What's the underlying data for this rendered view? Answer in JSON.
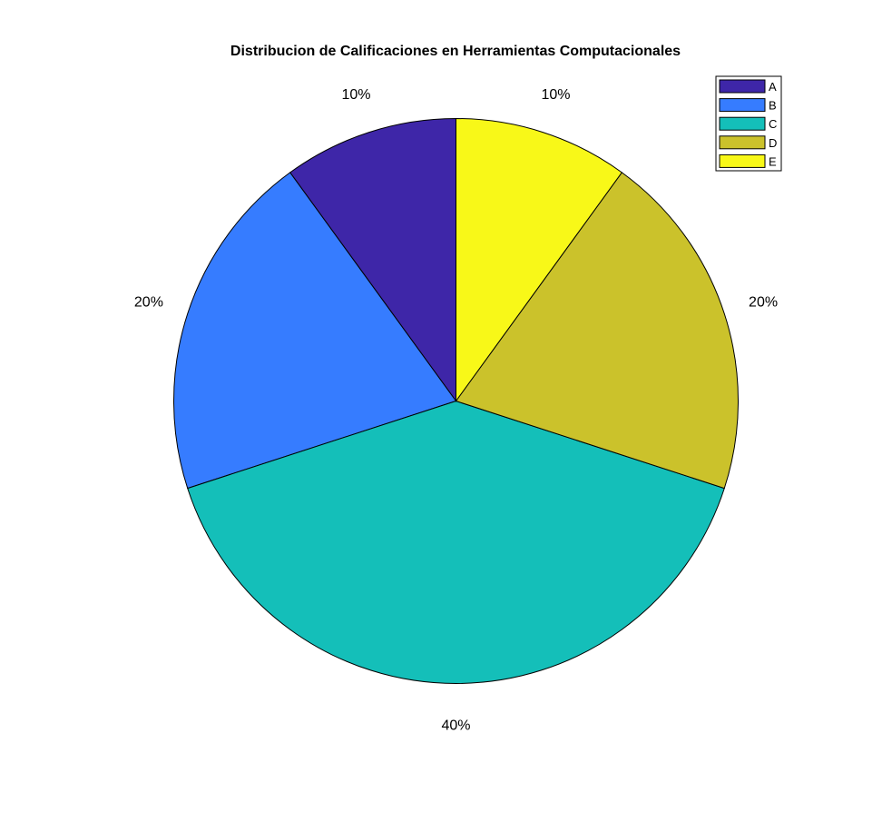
{
  "chart_data": {
    "type": "pie",
    "title": "Distribucion de Calificaciones en Herramientas Computacionales",
    "categories": [
      "A",
      "B",
      "C",
      "D",
      "E"
    ],
    "values": [
      10,
      20,
      40,
      20,
      10
    ],
    "labels": [
      "10%",
      "20%",
      "40%",
      "20%",
      "10%"
    ],
    "colors": [
      "#3e26a8",
      "#367cff",
      "#14bfb9",
      "#cbc22b",
      "#f8f818"
    ],
    "start_angle": "12 o'clock",
    "direction": "counter-clockwise",
    "legend": {
      "position": "top-right",
      "entries": [
        "A",
        "B",
        "C",
        "D",
        "E"
      ]
    }
  }
}
